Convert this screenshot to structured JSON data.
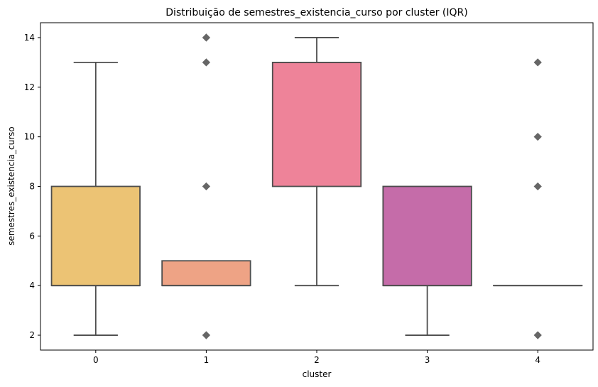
{
  "chart_data": {
    "type": "box",
    "title": "Distribuição de semestres_existencia_curso por cluster (IQR)",
    "xlabel": "cluster",
    "ylabel": "semestres_existencia_curso",
    "ylim": [
      1.4,
      14.6
    ],
    "yticks": [
      2,
      4,
      6,
      8,
      10,
      12,
      14
    ],
    "categories": [
      "0",
      "1",
      "2",
      "3",
      "4"
    ],
    "boxes": [
      {
        "category": "0",
        "whisker_low": 2,
        "q1": 4,
        "median": 4,
        "q3": 8,
        "whisker_high": 13,
        "outliers": [],
        "color": "#ECC374"
      },
      {
        "category": "1",
        "whisker_low": 4,
        "q1": 4,
        "median": 4,
        "q3": 5,
        "whisker_high": 5,
        "outliers": [
          2,
          8,
          13,
          14
        ],
        "color": "#EEA385"
      },
      {
        "category": "2",
        "whisker_low": 4,
        "q1": 8,
        "median": 13,
        "q3": 13,
        "whisker_high": 14,
        "outliers": [],
        "color": "#EE8399"
      },
      {
        "category": "3",
        "whisker_low": 2,
        "q1": 4,
        "median": 4,
        "q3": 8,
        "whisker_high": 8,
        "outliers": [],
        "color": "#C56CA9"
      },
      {
        "category": "4",
        "whisker_low": 4,
        "q1": 4,
        "median": 4,
        "q3": 4,
        "whisker_high": 4,
        "outliers": [
          2,
          8,
          10,
          13
        ],
        "color": "#C56CA9"
      }
    ],
    "grid": false,
    "line_color": "#4D4D4D",
    "outlier_color": "#666666"
  }
}
